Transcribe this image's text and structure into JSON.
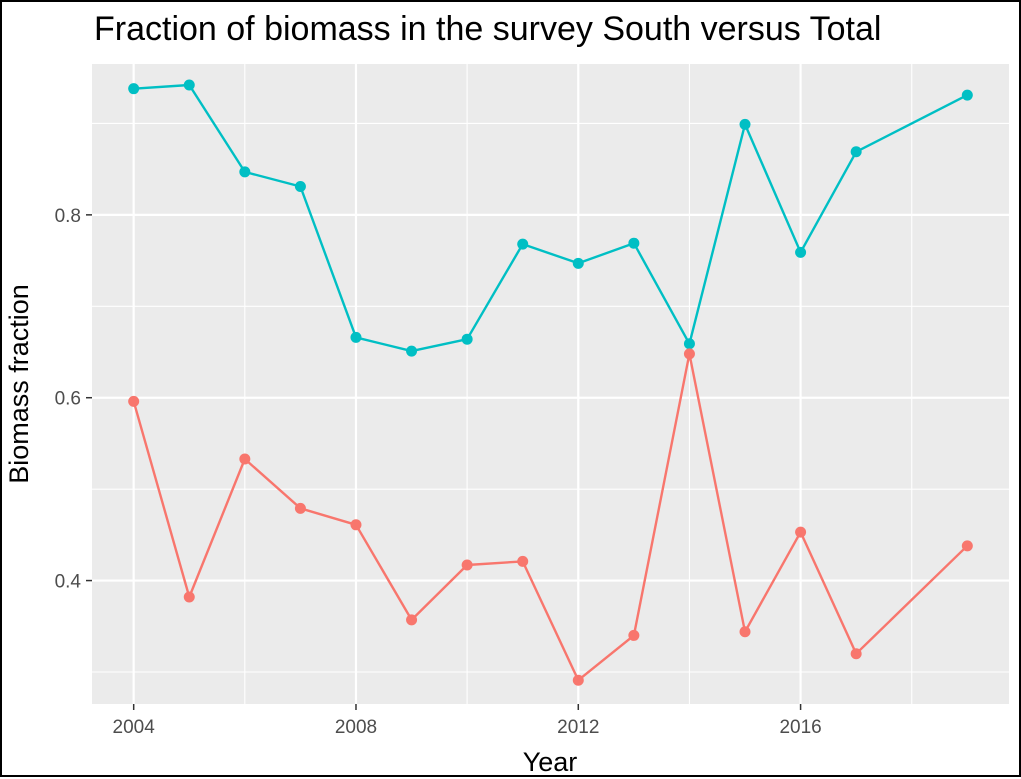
{
  "chart_data": {
    "type": "line",
    "title": "Fraction of biomass in the survey South versus Total",
    "xlabel": "Year",
    "ylabel": "Biomass fraction",
    "xlim": [
      2003.25,
      2019.75
    ],
    "ylim": [
      0.265,
      0.965
    ],
    "x_ticks": [
      2004,
      2008,
      2012,
      2016
    ],
    "x_tick_labels": [
      "2004",
      "2008",
      "2012",
      "2016"
    ],
    "x_minor_ticks": [
      2006,
      2010,
      2014,
      2018
    ],
    "y_ticks": [
      0.4,
      0.6,
      0.8
    ],
    "y_tick_labels": [
      "0.4",
      "0.6",
      "0.8"
    ],
    "y_minor_ticks": [
      0.3,
      0.5,
      0.7,
      0.9
    ],
    "grid": true,
    "legend": "none",
    "background": "#ebebeb",
    "gridline_color": "#ffffff",
    "x": [
      2004,
      2005,
      2006,
      2007,
      2008,
      2009,
      2010,
      2011,
      2012,
      2013,
      2014,
      2015,
      2016,
      2017,
      2019
    ],
    "series": [
      {
        "color": "#00bfc4",
        "values": [
          0.938,
          0.942,
          0.847,
          0.831,
          0.666,
          0.651,
          0.664,
          0.768,
          0.747,
          0.769,
          0.659,
          0.899,
          0.759,
          0.869,
          0.931
        ]
      },
      {
        "color": "#f8766d",
        "values": [
          0.596,
          0.382,
          0.533,
          0.479,
          0.461,
          0.357,
          0.417,
          0.421,
          0.291,
          0.34,
          0.648,
          0.344,
          0.453,
          0.32,
          0.438
        ]
      }
    ]
  }
}
